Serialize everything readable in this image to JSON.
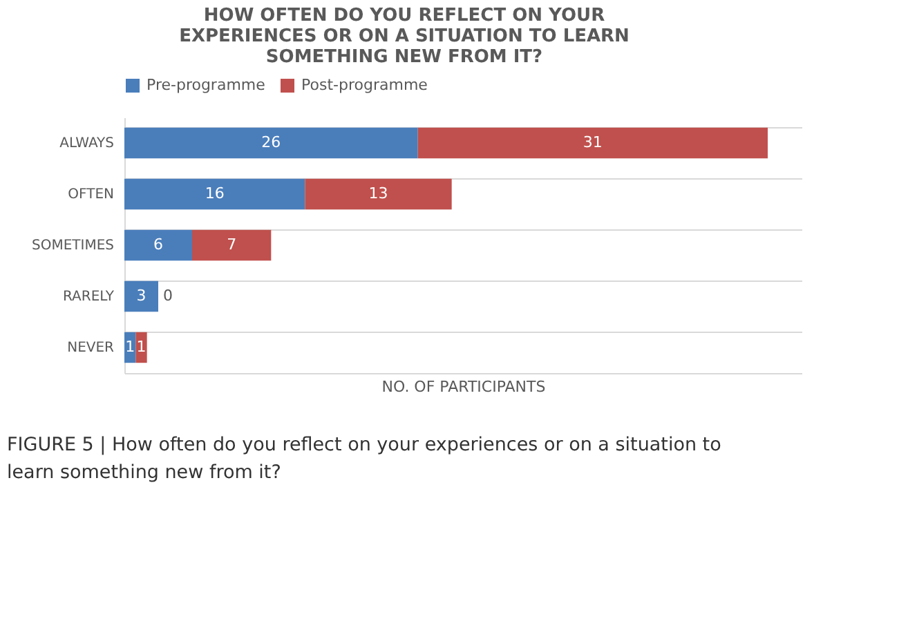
{
  "chart_data": {
    "type": "bar",
    "orientation": "horizontal",
    "stacked": true,
    "title": "HOW OFTEN DO YOU REFLECT ON YOUR EXPERIENCES OR ON A SITUATION TO LEARN SOMETHING NEW FROM IT?",
    "categories": [
      "ALWAYS",
      "OFTEN",
      "SOMETIMES",
      "RARELY",
      "NEVER"
    ],
    "series": [
      {
        "name": "Pre-programme",
        "color": "#4a7ebb",
        "values": [
          26,
          16,
          6,
          3,
          1
        ]
      },
      {
        "name": "Post-programme",
        "color": "#c0504d",
        "values": [
          31,
          13,
          7,
          0,
          1
        ]
      }
    ],
    "xlabel": "NO. OF PARTICIPANTS",
    "data_labels": true,
    "grid": "y",
    "legend": "top",
    "annotations": [
      "FIGURE 5 | How often do you reflect on your experiences or on a situation to learn something new from it?"
    ]
  }
}
